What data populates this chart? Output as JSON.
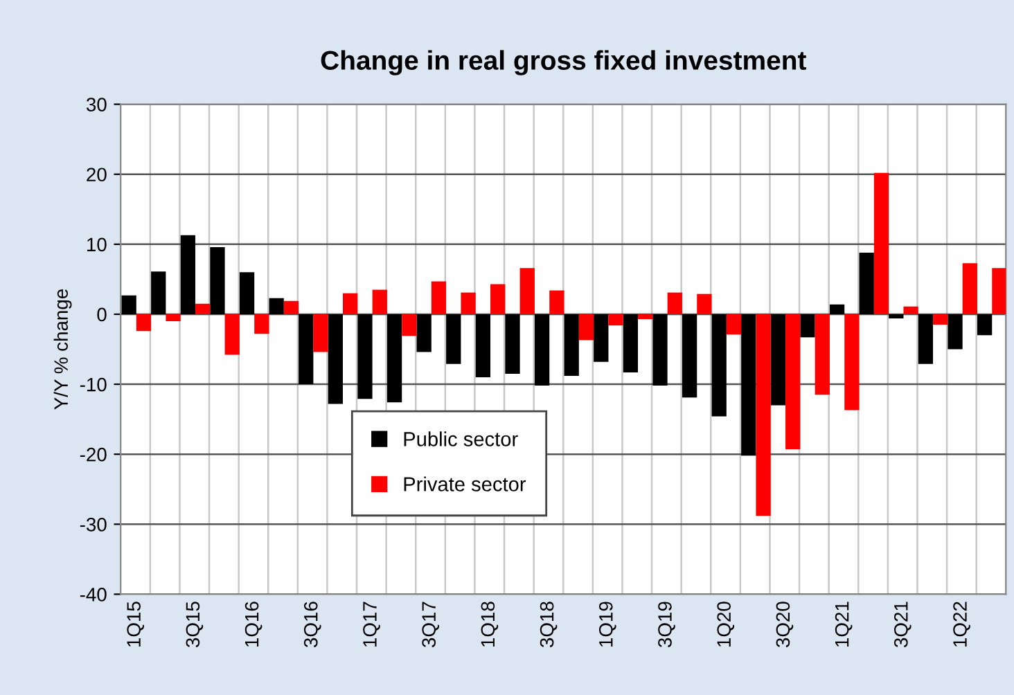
{
  "chart_data": {
    "type": "bar",
    "title": "Change in real gross fixed investment",
    "ylabel": "Y/Y % change",
    "categories": [
      "1Q15",
      null,
      "3Q15",
      null,
      "1Q16",
      null,
      "3Q16",
      null,
      "1Q17",
      null,
      "3Q17",
      null,
      "1Q18",
      null,
      "3Q18",
      null,
      "1Q19",
      null,
      "3Q19",
      null,
      "1Q20",
      null,
      "3Q20",
      null,
      "1Q21",
      null,
      "3Q21",
      null,
      "1Q22",
      null
    ],
    "series": [
      {
        "name": "Public sector",
        "color": "#000000",
        "values": [
          2.7,
          6.1,
          11.3,
          9.6,
          6.0,
          2.3,
          -10.0,
          -12.8,
          -12.1,
          -12.6,
          -5.4,
          -7.1,
          -9.0,
          -8.5,
          -10.2,
          -8.8,
          -6.8,
          -8.3,
          -10.2,
          -11.9,
          -14.6,
          -20.2,
          -13.0,
          -3.3,
          1.4,
          8.8,
          -0.6,
          -7.1,
          -5.0,
          -3.0
        ]
      },
      {
        "name": "Private sector",
        "color": "#ff0000",
        "values": [
          -2.4,
          -1.0,
          1.5,
          -5.8,
          -2.8,
          1.9,
          -5.4,
          3.0,
          3.5,
          -3.1,
          4.7,
          3.1,
          4.3,
          6.6,
          3.4,
          -3.7,
          -1.6,
          -0.7,
          3.1,
          2.9,
          -2.9,
          -28.8,
          -19.3,
          -11.5,
          -13.7,
          20.2,
          1.1,
          -1.5,
          7.3,
          6.6
        ]
      }
    ],
    "ylim": [
      -40,
      30
    ],
    "yticks": [
      -40,
      -30,
      -20,
      -10,
      0,
      10,
      20,
      30
    ],
    "grid": true,
    "legend": "bottom left"
  }
}
